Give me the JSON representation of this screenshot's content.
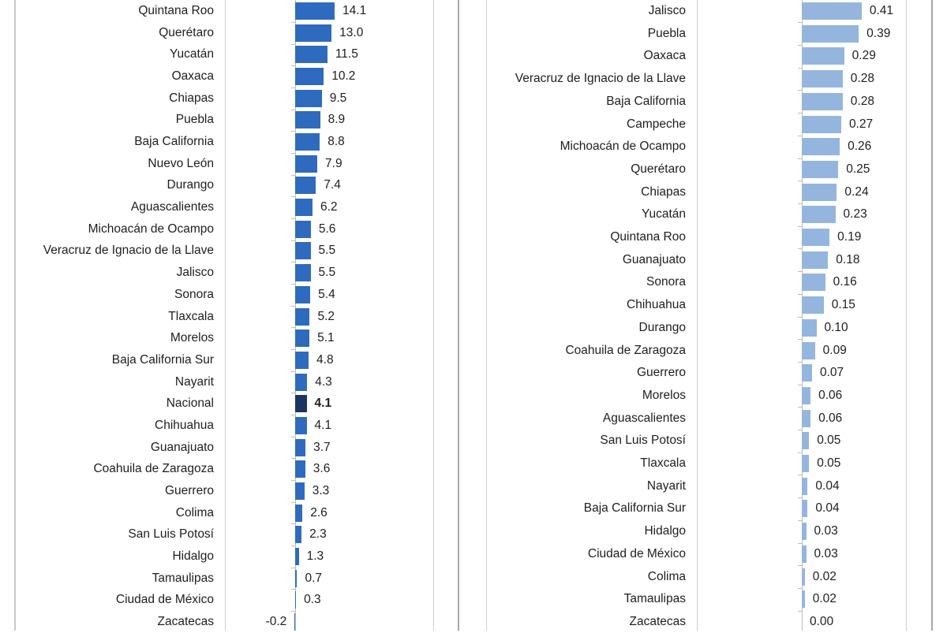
{
  "colors": {
    "left_bar": "#2e6bbf",
    "highlight_bar": "#1c3661",
    "right_bar": "#94b6de"
  },
  "chart_data": [
    {
      "type": "bar",
      "orientation": "horizontal",
      "title": "",
      "xlabel": "",
      "ylabel": "",
      "categories": [
        "Quintana Roo",
        "Querétaro",
        "Yucatán",
        "Oaxaca",
        "Chiapas",
        "Puebla",
        "Baja California",
        "Nuevo León",
        "Durango",
        "Aguascalientes",
        "Michoacán de Ocampo",
        "Veracruz de Ignacio de la Llave",
        "Jalisco",
        "Sonora",
        "Tlaxcala",
        "Morelos",
        "Baja California Sur",
        "Nayarit",
        "Nacional",
        "Chihuahua",
        "Guanajuato",
        "Coahuila de Zaragoza",
        "Guerrero",
        "Colima",
        "San Luis Potosí",
        "Hidalgo",
        "Tamaulipas",
        "Ciudad de México",
        "Zacatecas"
      ],
      "values": [
        14.1,
        13.0,
        11.5,
        10.2,
        9.5,
        8.9,
        8.8,
        7.9,
        7.4,
        6.2,
        5.6,
        5.5,
        5.5,
        5.4,
        5.2,
        5.1,
        4.8,
        4.3,
        4.1,
        4.1,
        3.7,
        3.6,
        3.3,
        2.6,
        2.3,
        1.3,
        0.7,
        0.3,
        -0.2
      ],
      "labels": [
        "14.1",
        "13.0",
        "11.5",
        "10.2",
        "9.5",
        "8.9",
        "8.8",
        "7.9",
        "7.4",
        "6.2",
        "5.6",
        "5.5",
        "5.5",
        "5.4",
        "5.2",
        "5.1",
        "4.8",
        "4.3",
        "4.1",
        "4.1",
        "3.7",
        "3.6",
        "3.3",
        "2.6",
        "2.3",
        "1.3",
        "0.7",
        "0.3",
        "-0.2"
      ],
      "highlight": "Nacional",
      "grid": false
    },
    {
      "type": "bar",
      "orientation": "horizontal",
      "title": "",
      "xlabel": "",
      "ylabel": "",
      "categories": [
        "Jalisco",
        "Puebla",
        "Oaxaca",
        "Veracruz de Ignacio de la Llave",
        "Baja California",
        "Campeche",
        "Michoacán de Ocampo",
        "Querétaro",
        "Chiapas",
        "Yucatán",
        "Quintana Roo",
        "Guanajuato",
        "Sonora",
        "Chihuahua",
        "Durango",
        "Coahuila de Zaragoza",
        "Guerrero",
        "Morelos",
        "Aguascalientes",
        "San Luis Potosí",
        "Tlaxcala",
        "Nayarit",
        "Baja California Sur",
        "Hidalgo",
        "Ciudad de México",
        "Colima",
        "Tamaulipas",
        "Zacatecas"
      ],
      "values": [
        0.41,
        0.39,
        0.29,
        0.28,
        0.28,
        0.27,
        0.26,
        0.25,
        0.24,
        0.23,
        0.19,
        0.18,
        0.16,
        0.15,
        0.1,
        0.09,
        0.07,
        0.06,
        0.06,
        0.05,
        0.05,
        0.04,
        0.04,
        0.03,
        0.03,
        0.02,
        0.02,
        0.0
      ],
      "labels": [
        "0.41",
        "0.39",
        "0.29",
        "0.28",
        "0.28",
        "0.27",
        "0.26",
        "0.25",
        "0.24",
        "0.23",
        "0.19",
        "0.18",
        "0.16",
        "0.15",
        "0.10",
        "0.09",
        "0.07",
        "0.06",
        "0.06",
        "0.05",
        "0.05",
        "0.04",
        "0.04",
        "0.03",
        "0.03",
        "0.02",
        "0.02",
        "0.00"
      ],
      "grid": false
    }
  ]
}
